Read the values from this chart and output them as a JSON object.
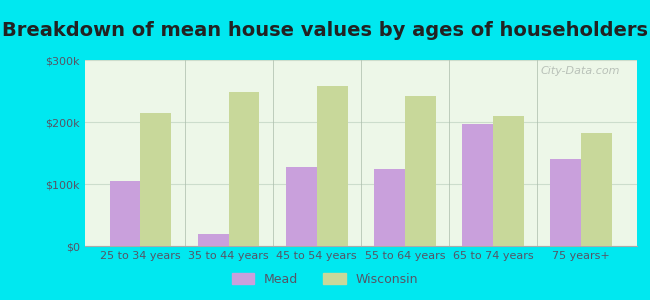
{
  "title": "Breakdown of mean house values by ages of householders",
  "categories": [
    "25 to 34 years",
    "35 to 44 years",
    "45 to 54 years",
    "55 to 64 years",
    "65 to 74 years",
    "75 years+"
  ],
  "mead_values": [
    105000,
    20000,
    128000,
    125000,
    196000,
    140000
  ],
  "wisconsin_values": [
    215000,
    248000,
    258000,
    242000,
    210000,
    182000
  ],
  "mead_color": "#c9a0dc",
  "wisconsin_color": "#c8d89a",
  "background_outer": "#00e8f0",
  "background_inner": "#e8f5e0",
  "ylim": [
    0,
    300000
  ],
  "yticks": [
    0,
    100000,
    200000,
    300000
  ],
  "ytick_labels": [
    "$0",
    "$100k",
    "$200k",
    "$300k"
  ],
  "title_fontsize": 14,
  "legend_labels": [
    "Mead",
    "Wisconsin"
  ],
  "bar_width": 0.35
}
